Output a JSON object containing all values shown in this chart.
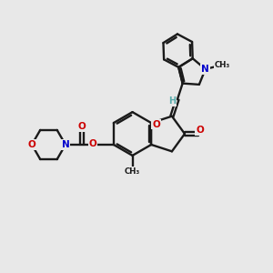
{
  "bg_color": "#e8e8e8",
  "bond_color": "#1a1a1a",
  "o_color": "#cc0000",
  "n_color": "#0000cc",
  "h_color": "#5aacac",
  "lw": 1.7,
  "figsize": [
    3.0,
    3.0
  ],
  "dpi": 100,
  "xlim": [
    0,
    10
  ],
  "ylim": [
    0,
    10
  ]
}
